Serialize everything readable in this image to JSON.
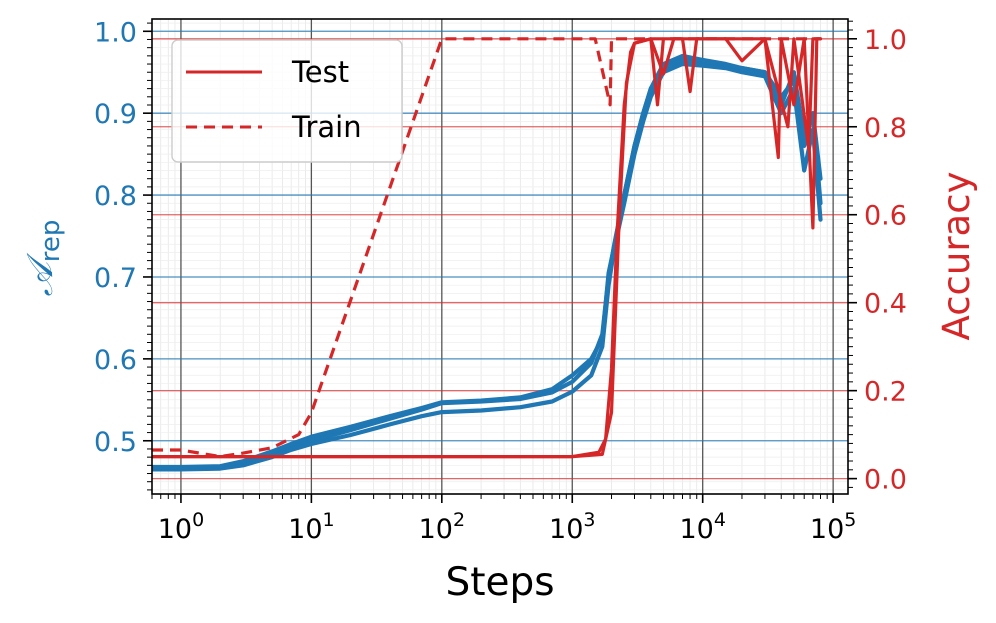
{
  "chart_data": {
    "type": "line",
    "xlabel": "Steps",
    "ylabel_left": "𝒜",
    "ylabel_left_sub": "rep",
    "ylabel_right": "Accuracy",
    "x_scale": "log",
    "xlim": [
      0.6,
      130000
    ],
    "ylim_left": [
      0.435,
      1.015
    ],
    "ylim_right": [
      -0.035,
      1.045
    ],
    "x_ticks": [
      {
        "value": 1,
        "base": "10",
        "exp": "0"
      },
      {
        "value": 10,
        "base": "10",
        "exp": "1"
      },
      {
        "value": 100,
        "base": "10",
        "exp": "2"
      },
      {
        "value": 1000,
        "base": "10",
        "exp": "3"
      },
      {
        "value": 10000,
        "base": "10",
        "exp": "4"
      },
      {
        "value": 100000,
        "base": "10",
        "exp": "5"
      }
    ],
    "y_left_ticks": [
      "0.5",
      "0.6",
      "0.7",
      "0.8",
      "0.9",
      "1.0"
    ],
    "y_right_ticks": [
      "0.0",
      "0.2",
      "0.4",
      "0.6",
      "0.8",
      "1.0"
    ],
    "colors": {
      "left_axis": "#1f77b4",
      "right_axis": "#d62728"
    },
    "legend": {
      "placement": "upper-left",
      "entries": [
        {
          "label": "Test",
          "style": "solid"
        },
        {
          "label": "Train",
          "style": "dashed"
        }
      ]
    },
    "grid": true,
    "series": [
      {
        "axis": "left",
        "style": "solid",
        "color": "#1f77b4",
        "points": [
          [
            0.6,
            0.467
          ],
          [
            1,
            0.467
          ],
          [
            2,
            0.467
          ],
          [
            3,
            0.472
          ],
          [
            5,
            0.484
          ],
          [
            7,
            0.492
          ],
          [
            10,
            0.5
          ],
          [
            20,
            0.513
          ],
          [
            40,
            0.527
          ],
          [
            70,
            0.538
          ],
          [
            100,
            0.546
          ],
          [
            200,
            0.548
          ],
          [
            400,
            0.551
          ],
          [
            700,
            0.559
          ],
          [
            1000,
            0.572
          ],
          [
            1400,
            0.595
          ],
          [
            1700,
            0.63
          ],
          [
            1900,
            0.7
          ],
          [
            2100,
            0.74
          ],
          [
            2500,
            0.8
          ],
          [
            3000,
            0.86
          ],
          [
            3500,
            0.9
          ],
          [
            4000,
            0.93
          ],
          [
            5000,
            0.955
          ],
          [
            7000,
            0.965
          ],
          [
            10000,
            0.962
          ],
          [
            15000,
            0.958
          ],
          [
            20000,
            0.955
          ],
          [
            30000,
            0.95
          ],
          [
            40000,
            0.92
          ],
          [
            50000,
            0.94
          ],
          [
            60000,
            0.86
          ],
          [
            70000,
            0.9
          ],
          [
            80000,
            0.82
          ]
        ]
      },
      {
        "axis": "left",
        "style": "solid",
        "color": "#1f77b4",
        "points": [
          [
            0.6,
            0.465
          ],
          [
            1,
            0.465
          ],
          [
            2,
            0.466
          ],
          [
            3,
            0.47
          ],
          [
            5,
            0.48
          ],
          [
            7,
            0.489
          ],
          [
            10,
            0.496
          ],
          [
            20,
            0.507
          ],
          [
            40,
            0.52
          ],
          [
            70,
            0.53
          ],
          [
            100,
            0.535
          ],
          [
            200,
            0.537
          ],
          [
            400,
            0.541
          ],
          [
            700,
            0.548
          ],
          [
            1000,
            0.56
          ],
          [
            1400,
            0.58
          ],
          [
            1700,
            0.615
          ],
          [
            1900,
            0.69
          ],
          [
            2100,
            0.735
          ],
          [
            2500,
            0.79
          ],
          [
            3000,
            0.85
          ],
          [
            3500,
            0.89
          ],
          [
            4000,
            0.92
          ],
          [
            5000,
            0.95
          ],
          [
            7000,
            0.96
          ],
          [
            10000,
            0.958
          ],
          [
            15000,
            0.955
          ],
          [
            20000,
            0.95
          ],
          [
            30000,
            0.945
          ],
          [
            40000,
            0.9
          ],
          [
            50000,
            0.93
          ],
          [
            60000,
            0.83
          ],
          [
            70000,
            0.88
          ],
          [
            80000,
            0.77
          ]
        ]
      },
      {
        "axis": "left",
        "style": "solid",
        "color": "#1f77b4",
        "points": [
          [
            0.6,
            0.468
          ],
          [
            1,
            0.468
          ],
          [
            2,
            0.469
          ],
          [
            3,
            0.475
          ],
          [
            5,
            0.487
          ],
          [
            7,
            0.496
          ],
          [
            10,
            0.505
          ],
          [
            20,
            0.517
          ],
          [
            40,
            0.53
          ],
          [
            70,
            0.54
          ],
          [
            100,
            0.547
          ],
          [
            200,
            0.549
          ],
          [
            400,
            0.553
          ],
          [
            700,
            0.563
          ],
          [
            1000,
            0.58
          ],
          [
            1400,
            0.6
          ],
          [
            1700,
            0.625
          ],
          [
            1900,
            0.705
          ],
          [
            2100,
            0.738
          ],
          [
            2500,
            0.8
          ],
          [
            3000,
            0.86
          ],
          [
            3500,
            0.9
          ],
          [
            4000,
            0.93
          ],
          [
            5000,
            0.96
          ],
          [
            7000,
            0.97
          ],
          [
            10000,
            0.965
          ],
          [
            15000,
            0.96
          ],
          [
            20000,
            0.955
          ],
          [
            30000,
            0.95
          ],
          [
            40000,
            0.91
          ],
          [
            50000,
            0.95
          ],
          [
            60000,
            0.87
          ],
          [
            70000,
            0.9
          ],
          [
            80000,
            0.79
          ]
        ]
      },
      {
        "axis": "right",
        "style": "solid",
        "color": "#d62728",
        "points": [
          [
            0.6,
            0.05
          ],
          [
            1,
            0.05
          ],
          [
            10,
            0.05
          ],
          [
            100,
            0.05
          ],
          [
            1000,
            0.05
          ],
          [
            1600,
            0.06
          ],
          [
            1800,
            0.09
          ],
          [
            2000,
            0.25
          ],
          [
            2200,
            0.55
          ],
          [
            2500,
            0.85
          ],
          [
            2800,
            0.97
          ],
          [
            3000,
            0.99
          ],
          [
            4000,
            1.0
          ],
          [
            5000,
            0.92
          ],
          [
            6000,
            1.0
          ],
          [
            7000,
            1.0
          ],
          [
            8000,
            0.88
          ],
          [
            9000,
            1.0
          ],
          [
            15000,
            1.0
          ],
          [
            20000,
            0.95
          ],
          [
            30000,
            1.0
          ],
          [
            38000,
            0.73
          ],
          [
            40000,
            1.0
          ],
          [
            50000,
            0.85
          ],
          [
            60000,
            1.0
          ],
          [
            70000,
            0.57
          ],
          [
            75000,
            1.0
          ],
          [
            80000,
            1.0
          ]
        ]
      },
      {
        "axis": "right",
        "style": "solid",
        "color": "#d62728",
        "points": [
          [
            0.6,
            0.05
          ],
          [
            1,
            0.05
          ],
          [
            10,
            0.05
          ],
          [
            100,
            0.05
          ],
          [
            1000,
            0.05
          ],
          [
            1700,
            0.055
          ],
          [
            2000,
            0.15
          ],
          [
            2300,
            0.6
          ],
          [
            2600,
            0.9
          ],
          [
            3000,
            0.99
          ],
          [
            4000,
            1.0
          ],
          [
            4500,
            0.85
          ],
          [
            5000,
            1.0
          ],
          [
            10000,
            1.0
          ],
          [
            30000,
            1.0
          ],
          [
            45000,
            0.8
          ],
          [
            50000,
            1.0
          ],
          [
            65000,
            0.75
          ],
          [
            70000,
            1.0
          ],
          [
            80000,
            1.0
          ]
        ]
      },
      {
        "axis": "right",
        "style": "dashed",
        "color": "#d62728",
        "points": [
          [
            0.6,
            0.065
          ],
          [
            1,
            0.065
          ],
          [
            2,
            0.05
          ],
          [
            3,
            0.058
          ],
          [
            5,
            0.07
          ],
          [
            8,
            0.1
          ],
          [
            10,
            0.15
          ],
          [
            100,
            1.0
          ],
          [
            1500,
            1.0
          ],
          [
            1950,
            0.85
          ],
          [
            2000,
            1.0
          ],
          [
            80000,
            1.0
          ]
        ]
      }
    ]
  }
}
